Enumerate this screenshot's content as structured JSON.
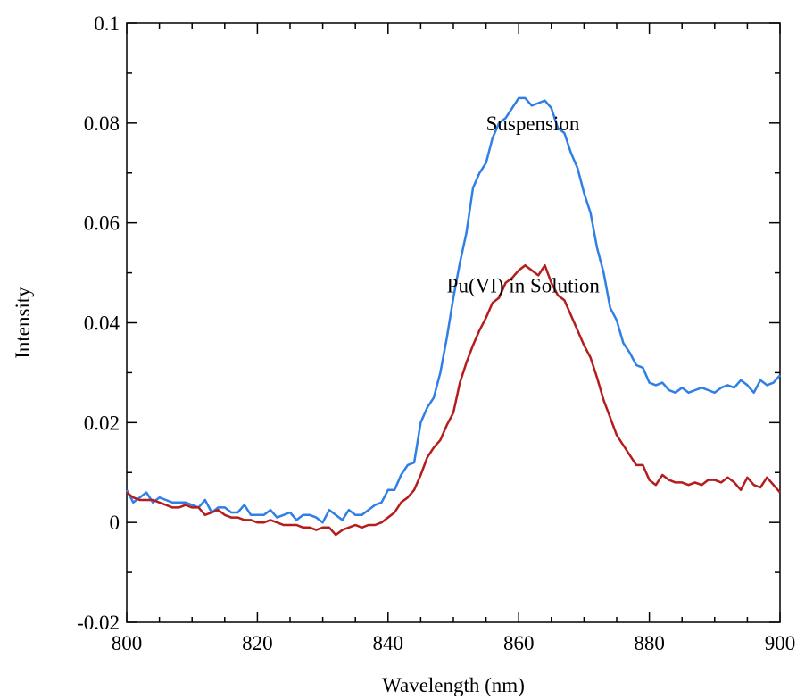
{
  "chart_data": {
    "type": "line",
    "title": "",
    "xlabel": "Wavelength (nm)",
    "ylabel": "Intensity",
    "xlim": [
      800,
      900
    ],
    "ylim": [
      -0.02,
      0.1
    ],
    "x_ticks": [
      800,
      820,
      840,
      860,
      880,
      900
    ],
    "x_tick_labels": [
      "800",
      "820",
      "840",
      "860",
      "880",
      "900"
    ],
    "y_ticks": [
      -0.02,
      0,
      0.02,
      0.04,
      0.06,
      0.08,
      0.1
    ],
    "y_tick_labels": [
      "-0.02",
      "0",
      "0.02",
      "0.04",
      "0.06",
      "0.08",
      "0.1"
    ],
    "grid": false,
    "annotations": [
      {
        "text": "Suspension",
        "x": 855,
        "y": 0.08
      },
      {
        "text": "Pu(VI) in Solution",
        "x": 849,
        "y": 0.0475
      }
    ],
    "series": [
      {
        "name": "",
        "color": "#2f7fe6",
        "x": [
          800,
          801,
          802,
          803,
          804,
          805,
          806,
          807,
          808,
          809,
          810,
          811,
          812,
          813,
          814,
          815,
          816,
          817,
          818,
          819,
          820,
          821,
          822,
          823,
          824,
          825,
          826,
          827,
          828,
          829,
          830,
          831,
          832,
          833,
          834,
          835,
          836,
          837,
          838,
          839,
          840,
          841,
          842,
          843,
          844,
          845,
          846,
          847,
          848,
          849,
          850,
          851,
          852,
          853,
          854,
          855,
          856,
          857,
          858,
          859,
          860,
          861,
          862,
          863,
          864,
          865,
          866,
          867,
          868,
          869,
          870,
          871,
          872,
          873,
          874,
          875,
          876,
          877,
          878,
          879,
          880,
          881,
          882,
          883,
          884,
          885,
          886,
          887,
          888,
          889,
          890,
          891,
          892,
          893,
          894,
          895,
          896,
          897,
          898,
          899,
          900
        ],
        "y": [
          0.0065,
          0.004,
          0.005,
          0.006,
          0.004,
          0.005,
          0.0045,
          0.004,
          0.004,
          0.004,
          0.0035,
          0.003,
          0.0045,
          0.002,
          0.003,
          0.003,
          0.002,
          0.002,
          0.0035,
          0.0015,
          0.0015,
          0.0015,
          0.0025,
          0.001,
          0.0015,
          0.002,
          0.0005,
          0.0015,
          0.0015,
          0.001,
          0.0,
          0.0025,
          0.0015,
          0.0005,
          0.0025,
          0.0015,
          0.0015,
          0.0025,
          0.0035,
          0.004,
          0.0065,
          0.0065,
          0.0095,
          0.0115,
          0.012,
          0.02,
          0.023,
          0.025,
          0.03,
          0.037,
          0.045,
          0.052,
          0.058,
          0.067,
          0.07,
          0.072,
          0.077,
          0.08,
          0.081,
          0.083,
          0.085,
          0.085,
          0.0835,
          0.084,
          0.0845,
          0.083,
          0.079,
          0.078,
          0.074,
          0.071,
          0.066,
          0.062,
          0.055,
          0.05,
          0.043,
          0.0405,
          0.036,
          0.034,
          0.0315,
          0.031,
          0.028,
          0.0275,
          0.028,
          0.0265,
          0.026,
          0.027,
          0.026,
          0.0265,
          0.027,
          0.0265,
          0.026,
          0.027,
          0.0275,
          0.027,
          0.0285,
          0.0275,
          0.026,
          0.0285,
          0.0275,
          0.028,
          0.0295
        ]
      },
      {
        "name": "",
        "color": "#b51d1d",
        "x": [
          800,
          801,
          802,
          803,
          804,
          805,
          806,
          807,
          808,
          809,
          810,
          811,
          812,
          813,
          814,
          815,
          816,
          817,
          818,
          819,
          820,
          821,
          822,
          823,
          824,
          825,
          826,
          827,
          828,
          829,
          830,
          831,
          832,
          833,
          834,
          835,
          836,
          837,
          838,
          839,
          840,
          841,
          842,
          843,
          844,
          845,
          846,
          847,
          848,
          849,
          850,
          851,
          852,
          853,
          854,
          855,
          856,
          857,
          858,
          859,
          860,
          861,
          862,
          863,
          864,
          865,
          866,
          867,
          868,
          869,
          870,
          871,
          872,
          873,
          874,
          875,
          876,
          877,
          878,
          879,
          880,
          881,
          882,
          883,
          884,
          885,
          886,
          887,
          888,
          889,
          890,
          891,
          892,
          893,
          894,
          895,
          896,
          897,
          898,
          899,
          900
        ],
        "y": [
          0.006,
          0.005,
          0.0045,
          0.0045,
          0.0045,
          0.004,
          0.0035,
          0.003,
          0.003,
          0.0035,
          0.003,
          0.003,
          0.0015,
          0.002,
          0.0025,
          0.0015,
          0.001,
          0.001,
          0.0005,
          0.0005,
          0.0,
          0.0,
          0.0005,
          0.0,
          -0.0005,
          -0.0005,
          -0.0005,
          -0.001,
          -0.001,
          -0.0015,
          -0.001,
          -0.001,
          -0.0025,
          -0.0015,
          -0.001,
          -0.0005,
          -0.001,
          -0.0005,
          -0.0005,
          0.0,
          0.001,
          0.002,
          0.004,
          0.005,
          0.0065,
          0.0095,
          0.013,
          0.015,
          0.0165,
          0.0195,
          0.022,
          0.028,
          0.032,
          0.0355,
          0.0385,
          0.041,
          0.044,
          0.045,
          0.048,
          0.049,
          0.0505,
          0.0515,
          0.0505,
          0.0495,
          0.0515,
          0.048,
          0.0455,
          0.0445,
          0.0415,
          0.0385,
          0.0355,
          0.033,
          0.029,
          0.0245,
          0.021,
          0.0175,
          0.0155,
          0.0135,
          0.0115,
          0.0115,
          0.0085,
          0.0075,
          0.0095,
          0.0085,
          0.008,
          0.008,
          0.0075,
          0.008,
          0.0075,
          0.0085,
          0.0085,
          0.008,
          0.009,
          0.008,
          0.0065,
          0.009,
          0.0075,
          0.007,
          0.009,
          0.0075,
          0.006
        ]
      }
    ]
  }
}
